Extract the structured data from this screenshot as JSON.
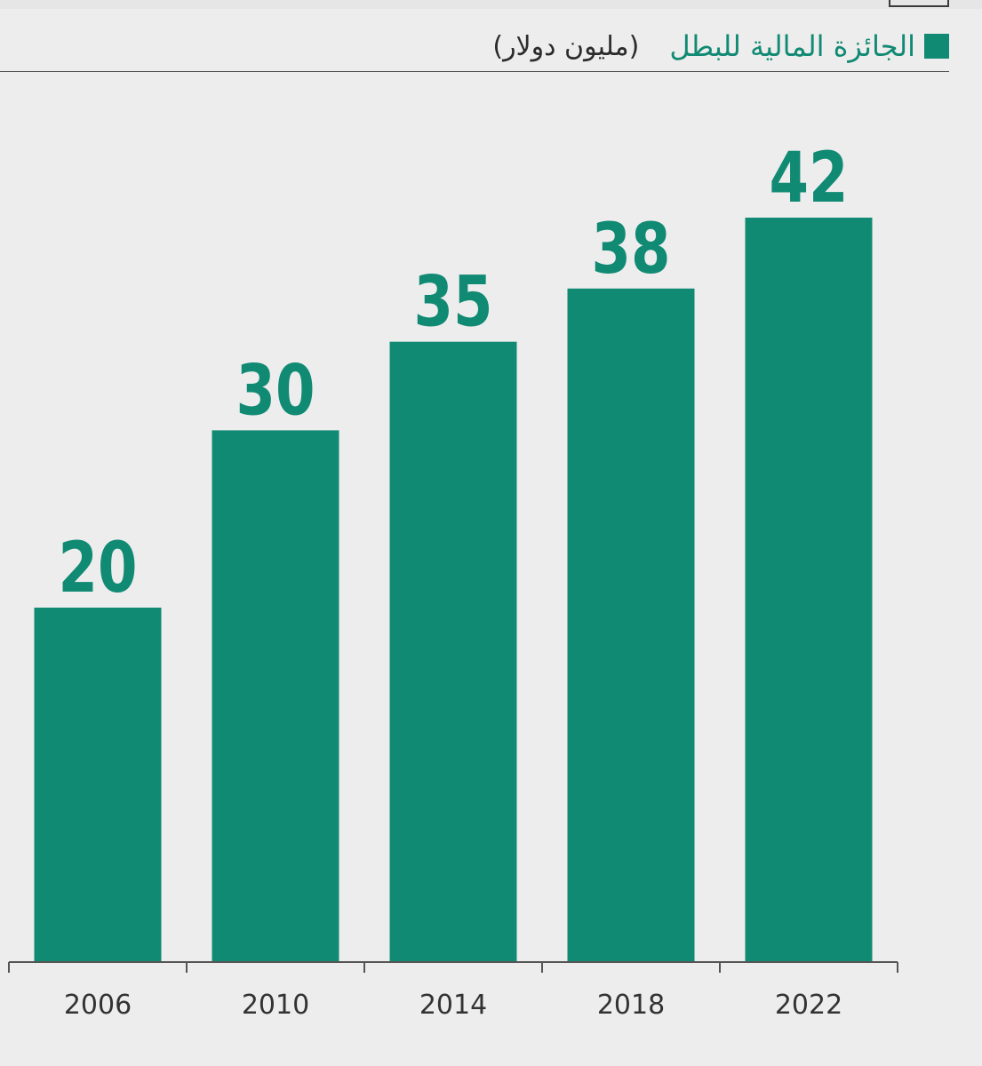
{
  "chart_data": {
    "type": "bar",
    "categories": [
      "2006",
      "2010",
      "2014",
      "2018",
      "2022"
    ],
    "series": [
      {
        "name": "الجائزة المالية للبطل",
        "values": [
          20,
          30,
          35,
          38,
          42
        ]
      }
    ],
    "unit": "(مليون دولار)",
    "data_labels": [
      "20",
      "30",
      "35",
      "38",
      "42"
    ],
    "ylim": [
      0,
      42
    ],
    "grid": false,
    "legend_position": "top-right",
    "colors": {
      "bar": "#118a74",
      "value_label": "#118a74",
      "axis": "#555555",
      "tick_label": "#333333",
      "background": "#ededed"
    }
  }
}
